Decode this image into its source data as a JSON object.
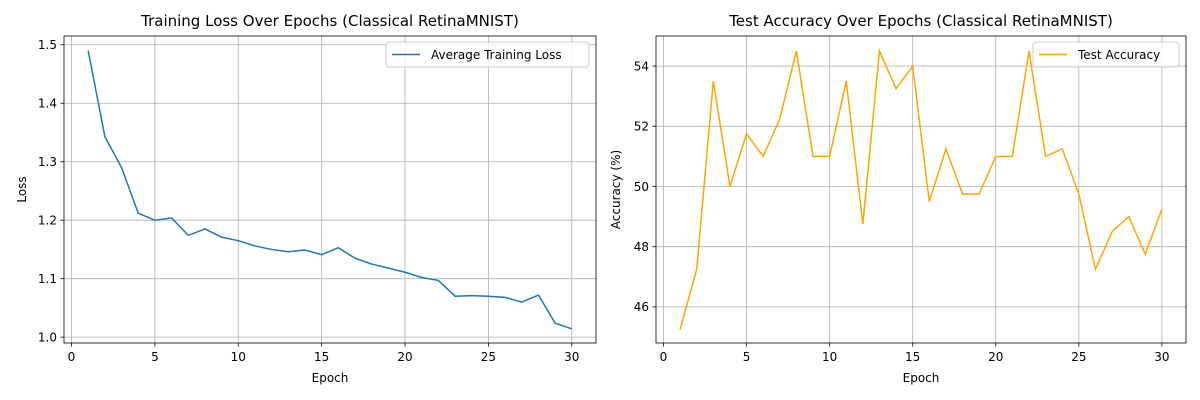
{
  "chart_data": [
    {
      "type": "line",
      "title": "Training Loss Over Epochs (Classical RetinaMNIST)",
      "xlabel": "Epoch",
      "ylabel": "Loss",
      "xlim": [
        -0.45,
        31.45
      ],
      "ylim": [
        0.99,
        1.515
      ],
      "xticks": [
        0,
        5,
        10,
        15,
        20,
        25,
        30
      ],
      "yticks": [
        1.0,
        1.1,
        1.2,
        1.3,
        1.4,
        1.5
      ],
      "ytick_labels": [
        "1.0",
        "1.1",
        "1.2",
        "1.3",
        "1.4",
        "1.5"
      ],
      "grid": true,
      "legend": "upper right",
      "series": [
        {
          "name": "Average Training Loss",
          "color": "#1f77b4",
          "x": [
            1,
            2,
            3,
            4,
            5,
            6,
            7,
            8,
            9,
            10,
            11,
            12,
            13,
            14,
            15,
            16,
            17,
            18,
            19,
            20,
            21,
            22,
            23,
            24,
            25,
            26,
            27,
            28,
            29,
            30
          ],
          "values": [
            1.49,
            1.343,
            1.29,
            1.212,
            1.2,
            1.204,
            1.174,
            1.185,
            1.171,
            1.165,
            1.156,
            1.15,
            1.146,
            1.149,
            1.141,
            1.153,
            1.135,
            1.125,
            1.118,
            1.111,
            1.102,
            1.097,
            1.07,
            1.071,
            1.07,
            1.068,
            1.06,
            1.072,
            1.024,
            1.014
          ]
        }
      ]
    },
    {
      "type": "line",
      "title": "Test Accuracy Over Epochs (Classical RetinaMNIST)",
      "xlabel": "Epoch",
      "ylabel": "Accuracy (%)",
      "xlim": [
        -0.45,
        31.45
      ],
      "ylim": [
        44.8,
        55.0
      ],
      "xticks": [
        0,
        5,
        10,
        15,
        20,
        25,
        30
      ],
      "yticks": [
        46,
        48,
        50,
        52,
        54
      ],
      "ytick_labels": [
        "46",
        "48",
        "50",
        "52",
        "54"
      ],
      "grid": true,
      "legend": "upper right",
      "series": [
        {
          "name": "Test Accuracy",
          "color": "#ffa500",
          "x": [
            1,
            2,
            3,
            4,
            5,
            6,
            7,
            8,
            9,
            10,
            11,
            12,
            13,
            14,
            15,
            16,
            17,
            18,
            19,
            20,
            21,
            22,
            23,
            24,
            25,
            26,
            27,
            28,
            29,
            30
          ],
          "values": [
            45.25,
            47.25,
            53.5,
            50.0,
            51.75,
            51.0,
            52.25,
            54.5,
            51.0,
            51.0,
            53.5,
            48.75,
            54.5,
            53.25,
            54.0,
            49.5,
            51.25,
            49.75,
            49.75,
            51.0,
            51.0,
            54.5,
            51.0,
            51.25,
            49.75,
            47.25,
            48.5,
            49.0,
            47.75,
            49.25
          ]
        }
      ]
    }
  ]
}
